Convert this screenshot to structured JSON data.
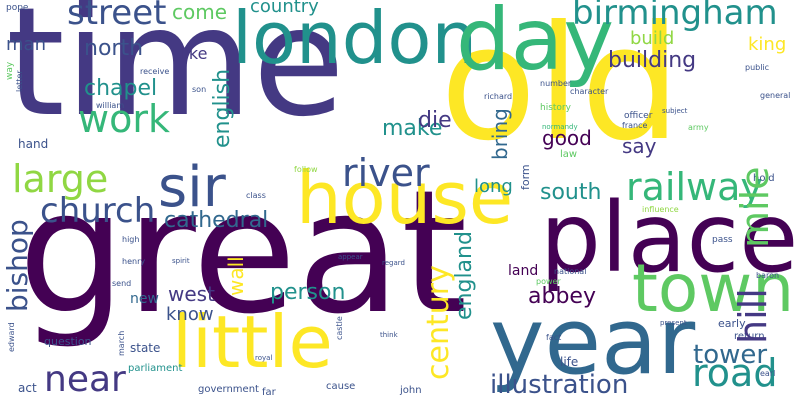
{
  "palette": {
    "purple": "#440154",
    "indigo": "#3b528b",
    "teal": "#21918c",
    "green": "#5ec962",
    "yellow": "#fde725",
    "navy": "#443983",
    "blue": "#31688e",
    "sea": "#35b779",
    "lime": "#90d743"
  },
  "words": {
    "time": "time",
    "great": "great",
    "old": "old",
    "london": "london",
    "day": "day",
    "place": "place",
    "year": "year",
    "house": "house",
    "town": "town",
    "little": "little",
    "sir": "sir",
    "birmingham": "birmingham",
    "street": "street",
    "river": "river",
    "railway": "railway",
    "large": "large",
    "church": "church",
    "work": "work",
    "near": "near",
    "road": "road",
    "mile": "mile",
    "hill": "hill",
    "century": "century",
    "bishop": "bishop",
    "cathedral": "cathedral",
    "england": "england",
    "chapel": "chapel",
    "building": "building",
    "north": "north",
    "south": "south",
    "west": "west",
    "abbey": "abbey",
    "person": "person",
    "illustration": "illustration",
    "tower": "tower",
    "make": "make",
    "build": "build",
    "man": "man",
    "die": "die",
    "come": "come",
    "country": "country",
    "king": "king",
    "english": "english",
    "bring": "bring",
    "good": "good",
    "say": "say",
    "long": "long",
    "know": "know",
    "wall": "wall",
    "like": "like",
    "form": "form",
    "land": "land",
    "new": "new",
    "state": "state",
    "hand": "hand",
    "question": "question",
    "parliament": "parliament",
    "government": "government",
    "far": "far",
    "cause": "cause",
    "john": "john",
    "life": "life",
    "early": "early",
    "return": "return",
    "act": "act",
    "william": "william",
    "receive": "receive",
    "son": "son",
    "richard": "richard",
    "number": "number",
    "character": "character",
    "history": "history",
    "normandy": "normandy",
    "officer": "officer",
    "france": "france",
    "army": "army",
    "law": "law",
    "subject": "subject",
    "general": "general",
    "public": "public",
    "hold": "hold",
    "follow": "follow",
    "class": "class",
    "influence": "influence",
    "pass": "pass",
    "high": "high",
    "henry": "henry",
    "spirit": "spirit",
    "send": "send",
    "appear": "appear",
    "regard": "regard",
    "national": "national",
    "power": "power",
    "fact": "fact",
    "baron": "baron",
    "present": "present",
    "march": "march",
    "edward": "edward",
    "castle": "castle",
    "think": "think",
    "earl": "earl",
    "pope": "pope",
    "letter": "letter",
    "way": "way",
    "royal": "royal"
  }
}
